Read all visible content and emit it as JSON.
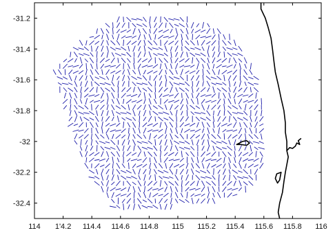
{
  "chart_data": {
    "type": "vector-field",
    "title": "",
    "xlabel": "",
    "ylabel": "",
    "xlim": [
      114,
      116
    ],
    "ylim": [
      -32.5,
      -31.1
    ],
    "x_ticks": [
      114,
      114.2,
      114.4,
      114.6,
      114.8,
      115,
      115.2,
      115.4,
      115.6,
      115.8,
      116
    ],
    "x_tick_labels": [
      "114",
      "1'4.2",
      "114.4",
      "114.6",
      "114.8",
      "115",
      "115.2",
      "115.4",
      "115.6",
      "115.8",
      "116"
    ],
    "y_ticks": [
      -31.2,
      -31.4,
      -31.6,
      -31.8,
      -32,
      -32.2,
      -32.4
    ],
    "y_tick_labels": [
      "-31.2",
      "-31.4",
      "-31.6",
      "-31.8",
      "-32",
      "-32.2",
      "-32.4"
    ],
    "grid": false,
    "colors": {
      "vectors": "#1a1aa8",
      "coastline": "#000000",
      "axes": "#000000"
    },
    "coastline": [
      [
        115.58,
        -31.1
      ],
      [
        115.58,
        -31.14
      ],
      [
        115.61,
        -31.2
      ],
      [
        115.63,
        -31.26
      ],
      [
        115.65,
        -31.33
      ],
      [
        115.66,
        -31.4
      ],
      [
        115.67,
        -31.48
      ],
      [
        115.68,
        -31.55
      ],
      [
        115.7,
        -31.63
      ],
      [
        115.72,
        -31.72
      ],
      [
        115.74,
        -31.8
      ],
      [
        115.75,
        -31.88
      ],
      [
        115.75,
        -31.94
      ],
      [
        115.76,
        -32.0
      ],
      [
        115.76,
        -32.06
      ],
      [
        115.77,
        -32.1
      ],
      [
        115.76,
        -32.15
      ],
      [
        115.75,
        -32.2
      ],
      [
        115.74,
        -32.26
      ],
      [
        115.73,
        -32.33
      ],
      [
        115.71,
        -32.4
      ],
      [
        115.7,
        -32.46
      ],
      [
        115.71,
        -32.5
      ]
    ],
    "island": [
      [
        115.41,
        -32.02
      ],
      [
        115.45,
        -32.0
      ],
      [
        115.48,
        -31.995
      ],
      [
        115.5,
        -32.01
      ],
      [
        115.48,
        -32.025
      ],
      [
        115.44,
        -32.02
      ],
      [
        115.41,
        -32.02
      ]
    ],
    "river": [
      [
        115.76,
        -32.06
      ],
      [
        115.78,
        -32.04
      ],
      [
        115.8,
        -32.045
      ],
      [
        115.82,
        -32.03
      ],
      [
        115.83,
        -32.01
      ],
      [
        115.85,
        -32.02
      ],
      [
        115.84,
        -31.995
      ],
      [
        115.86,
        -31.98
      ]
    ],
    "bay": [
      [
        115.72,
        -32.2
      ],
      [
        115.69,
        -32.21
      ],
      [
        115.68,
        -32.24
      ],
      [
        115.695,
        -32.27
      ],
      [
        115.71,
        -32.25
      ],
      [
        115.72,
        -32.2
      ]
    ],
    "vector_grid": {
      "x_range": [
        114.14,
        115.62
      ],
      "y_range": [
        -32.44,
        -31.17
      ],
      "x_step": 0.037,
      "y_step": 0.038,
      "boundary": [
        [
          114.62,
          -31.17
        ],
        [
          114.98,
          -31.18
        ],
        [
          115.22,
          -31.24
        ],
        [
          115.4,
          -31.34
        ],
        [
          115.52,
          -31.5
        ],
        [
          115.58,
          -31.7
        ],
        [
          115.62,
          -31.9
        ],
        [
          115.61,
          -32.08
        ],
        [
          115.56,
          -32.26
        ],
        [
          115.46,
          -32.34
        ],
        [
          115.2,
          -32.4
        ],
        [
          114.82,
          -32.44
        ],
        [
          114.56,
          -32.44
        ],
        [
          114.46,
          -32.32
        ],
        [
          114.34,
          -32.16
        ],
        [
          114.26,
          -31.94
        ],
        [
          114.2,
          -31.76
        ],
        [
          114.14,
          -31.55
        ],
        [
          114.26,
          -31.4
        ],
        [
          114.42,
          -31.28
        ],
        [
          114.62,
          -31.17
        ]
      ]
    }
  }
}
